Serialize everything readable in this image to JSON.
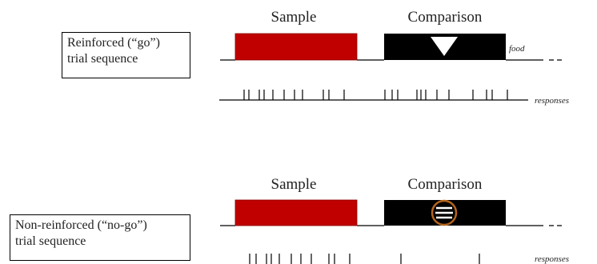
{
  "trials": [
    {
      "label_line1": "Reinforced (“go”)",
      "label_line2": "trial sequence",
      "sample_label": "Sample",
      "comparison_label": "Comparison",
      "end_label": "food",
      "stimulus_icon": "down-triangle-icon",
      "response_label": "responses"
    },
    {
      "label_line1": "Non-reinforced (“no-go”)",
      "label_line2": "trial sequence",
      "sample_label": "Sample",
      "comparison_label": "Comparison",
      "stimulus_icon": "striped-circle-icon",
      "response_label": "responses"
    }
  ],
  "colors": {
    "sample": "#c00000",
    "comparison": "#000000",
    "circle_outline": "#b5651d",
    "triangle": "#ffffff"
  }
}
